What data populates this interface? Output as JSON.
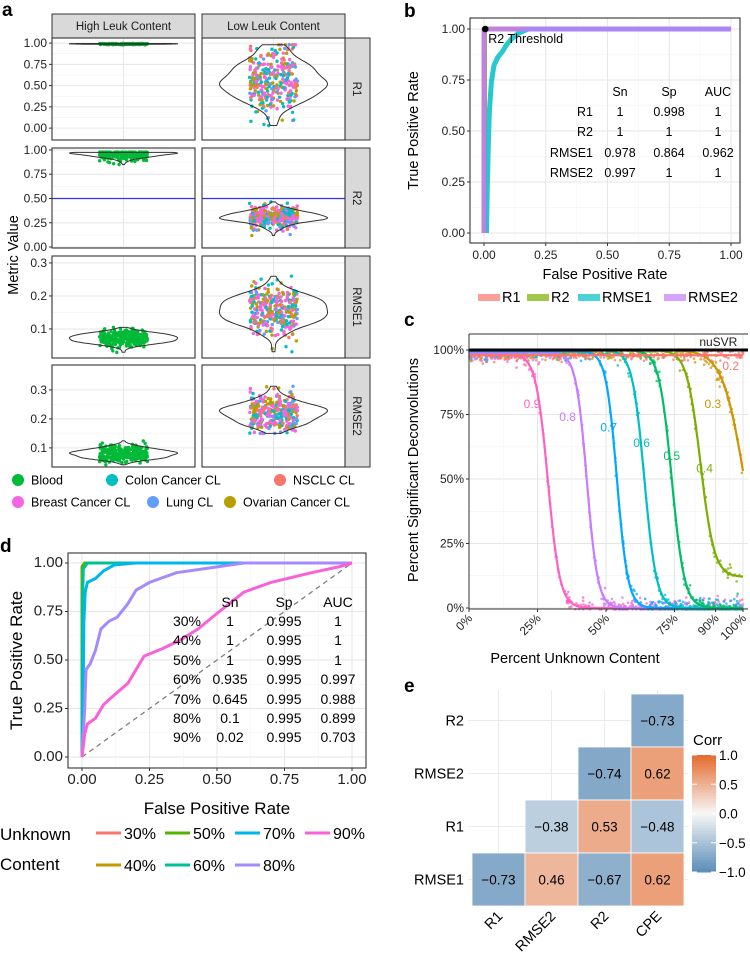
{
  "panel_labels": [
    "a",
    "b",
    "c",
    "d",
    "e"
  ],
  "chart_data": [
    {
      "id": "a",
      "type": "violin+scatter",
      "ylabel": "Metric Value",
      "columns": [
        "High Leuk Content",
        "Low Leuk Content"
      ],
      "rows": [
        {
          "name": "R1",
          "ylim": [
            -0.14,
            1.06
          ],
          "ticks": [
            0,
            0.25,
            0.5,
            0.75,
            1
          ],
          "tick_labels": [
            "0.00",
            "0.25",
            "0.50",
            "0.75",
            "1.00"
          ],
          "high": {
            "mean": 0.99,
            "sd": 0.005,
            "n": 200
          },
          "low": {
            "mean": 0.55,
            "sd": 0.2,
            "n": 320,
            "min": -0.08,
            "max": 0.98
          }
        },
        {
          "name": "R2",
          "ylim": [
            -0.01,
            1.02
          ],
          "ticks": [
            0,
            0.25,
            0.5,
            0.75,
            1
          ],
          "tick_labels": [
            "0.00",
            "0.25",
            "0.50",
            "0.75",
            "1.00"
          ],
          "threshold": 0.5,
          "high": {
            "mean": 0.955,
            "sd": 0.035,
            "n": 250
          },
          "low": {
            "mean": 0.31,
            "sd": 0.06,
            "n": 320,
            "min": 0.02,
            "max": 0.5
          }
        },
        {
          "name": "RMSE1",
          "ylim": [
            0.012,
            0.321
          ],
          "ticks": [
            0.1,
            0.2,
            0.3
          ],
          "tick_labels": [
            "0.1",
            "0.2",
            "0.3"
          ],
          "high": {
            "mean": 0.07,
            "sd": 0.014,
            "n": 250
          },
          "low": {
            "mean": 0.16,
            "sd": 0.04,
            "n": 320,
            "min": 0.03,
            "max": 0.32
          }
        },
        {
          "name": "RMSE2",
          "ylim": [
            0.034,
            0.386
          ],
          "ticks": [
            0.1,
            0.2,
            0.3
          ],
          "tick_labels": [
            "0.1",
            "0.2",
            "0.3"
          ],
          "high": {
            "mean": 0.08,
            "sd": 0.015,
            "n": 250
          },
          "low": {
            "mean": 0.22,
            "sd": 0.035,
            "n": 320,
            "min": 0.15,
            "max": 0.37
          }
        }
      ],
      "legend": [
        {
          "label": "Blood",
          "color": "#00BA38"
        },
        {
          "label": "Colon Cancer CL",
          "color": "#00BFC4"
        },
        {
          "label": "NSCLC CL",
          "color": "#F8766D"
        },
        {
          "label": "Breast Cancer CL",
          "color": "#F564E3"
        },
        {
          "label": "Lung CL",
          "color": "#619CFF"
        },
        {
          "label": "Ovarian Cancer CL",
          "color": "#B79F00"
        }
      ],
      "threshold_color": "#3333ff"
    },
    {
      "id": "b",
      "type": "line",
      "xlabel": "False Positive Rate",
      "ylabel": "True Positive Rate",
      "xlim": [
        0,
        1
      ],
      "ylim": [
        0,
        1
      ],
      "ticks": [
        0,
        0.25,
        0.5,
        0.75,
        1
      ],
      "tick_labels": [
        "0.00",
        "0.25",
        "0.50",
        "0.75",
        "1.00"
      ],
      "series": [
        {
          "name": "R1",
          "color": "#F8766D",
          "points": [
            [
              0,
              0
            ],
            [
              0,
              1
            ],
            [
              1,
              1
            ]
          ]
        },
        {
          "name": "R2",
          "color": "#7CAE00",
          "points": [
            [
              0.002,
              0
            ],
            [
              0.002,
              1
            ],
            [
              1,
              1
            ]
          ]
        },
        {
          "name": "RMSE1",
          "color": "#00BFC4",
          "points": [
            [
              0.01,
              0
            ],
            [
              0.013,
              0.2
            ],
            [
              0.018,
              0.45
            ],
            [
              0.022,
              0.6
            ],
            [
              0.03,
              0.74
            ],
            [
              0.04,
              0.82
            ],
            [
              0.055,
              0.86
            ],
            [
              0.075,
              0.89
            ],
            [
              0.09,
              0.92
            ],
            [
              0.11,
              0.95
            ],
            [
              0.14,
              0.98
            ],
            [
              0.18,
              1
            ],
            [
              1,
              1
            ]
          ]
        },
        {
          "name": "RMSE2",
          "color": "#C77CFF",
          "points": [
            [
              0,
              0
            ],
            [
              0,
              1
            ],
            [
              1,
              1
            ]
          ]
        }
      ],
      "annotation": {
        "label": "R2 Threshold",
        "x": 0.005,
        "y": 1
      },
      "table": {
        "header": [
          "",
          "Sn",
          "Sp",
          "AUC"
        ],
        "rows": [
          [
            "R1",
            "1",
            "0.998",
            "1"
          ],
          [
            "R2",
            "1",
            "1",
            "1"
          ],
          [
            "RMSE1",
            "0.978",
            "0.864",
            "0.962"
          ],
          [
            "RMSE2",
            "0.997",
            "1",
            "1"
          ]
        ]
      }
    },
    {
      "id": "c",
      "type": "scatter+line",
      "xlabel": "Percent Unknown Content",
      "ylabel": "Percent Significant Deconvolutions",
      "xlim": [
        0,
        100
      ],
      "ylim": [
        0,
        100
      ],
      "xticks": [
        0,
        25,
        50,
        75,
        90,
        100
      ],
      "xtick_labels": [
        "0%",
        "25%",
        "50%",
        "75%",
        "90%",
        "100%"
      ],
      "yticks": [
        0,
        25,
        50,
        75,
        100
      ],
      "ytick_labels": [
        "0%",
        "25%",
        "50%",
        "75%",
        "100%"
      ],
      "reference": {
        "label": "nuSVR",
        "value": 100,
        "label_at": [
          91,
          101.5
        ]
      },
      "series": [
        {
          "name": "0.9",
          "color": "#FF61C3",
          "mid": 28.8,
          "scale": 2.2,
          "low": 0,
          "high": 98.5,
          "label_at": [
            23,
            79
          ]
        },
        {
          "name": "0.8",
          "color": "#C77CFF",
          "mid": 43,
          "scale": 2.0,
          "low": 0,
          "high": 99,
          "label_at": [
            36,
            74
          ]
        },
        {
          "name": "0.7",
          "color": "#00A9FF",
          "mid": 54,
          "scale": 2.0,
          "low": 0,
          "high": 99.5,
          "label_at": [
            51,
            70
          ]
        },
        {
          "name": "0.6",
          "color": "#00BFC4",
          "mid": 64,
          "scale": 2.2,
          "low": 0,
          "high": 100,
          "label_at": [
            63,
            64
          ]
        },
        {
          "name": "0.5",
          "color": "#00BE67",
          "mid": 74,
          "scale": 2.3,
          "low": 0,
          "high": 100,
          "label_at": [
            74,
            59
          ]
        },
        {
          "name": "0.4",
          "color": "#7CAE00",
          "mid": 84.5,
          "scale": 2.5,
          "low": 12,
          "high": 100,
          "label_at": [
            86,
            54
          ]
        },
        {
          "name": "0.3",
          "color": "#CD9600",
          "mid": 100.5,
          "scale": 4,
          "low": 0,
          "high": 100,
          "label_at": [
            89,
            79
          ]
        },
        {
          "name": "0.2",
          "color": "#F8766D",
          "mid": 300,
          "scale": 4,
          "low": 0,
          "high": 98,
          "label_at": [
            95.5,
            93.8
          ]
        }
      ]
    },
    {
      "id": "d",
      "type": "line",
      "xlabel": "False Positive Rate",
      "ylabel": "True Positive Rate",
      "xlim": [
        0,
        1
      ],
      "ylim": [
        0,
        1
      ],
      "ticks": [
        0,
        0.25,
        0.5,
        0.75,
        1
      ],
      "tick_labels": [
        "0.00",
        "0.25",
        "0.50",
        "0.75",
        "1.00"
      ],
      "legend_title": [
        "Unknown",
        "Content"
      ],
      "series": [
        {
          "name": "30%",
          "color": "#F8766D",
          "points": [
            [
              0,
              0
            ],
            [
              0,
              0.98
            ],
            [
              0.01,
              1
            ],
            [
              1,
              1
            ]
          ]
        },
        {
          "name": "40%",
          "color": "#C49A00",
          "points": [
            [
              0,
              0
            ],
            [
              0,
              0.98
            ],
            [
              0.01,
              1
            ],
            [
              1,
              1
            ]
          ]
        },
        {
          "name": "50%",
          "color": "#53B400",
          "points": [
            [
              0,
              0
            ],
            [
              0,
              0.98
            ],
            [
              0.01,
              1
            ],
            [
              1,
              1
            ]
          ]
        },
        {
          "name": "60%",
          "color": "#00C094",
          "points": [
            [
              0,
              0
            ],
            [
              0.002,
              0.8
            ],
            [
              0.005,
              0.97
            ],
            [
              0.02,
              1
            ],
            [
              1,
              1
            ]
          ]
        },
        {
          "name": "70%",
          "color": "#00B6EB",
          "points": [
            [
              0,
              0
            ],
            [
              0.004,
              0.3
            ],
            [
              0.007,
              0.7
            ],
            [
              0.012,
              0.85
            ],
            [
              0.02,
              0.9
            ],
            [
              0.05,
              0.92
            ],
            [
              0.08,
              0.96
            ],
            [
              0.12,
              0.99
            ],
            [
              0.2,
              1
            ],
            [
              1,
              1
            ]
          ]
        },
        {
          "name": "80%",
          "color": "#A58AFF",
          "points": [
            [
              0,
              0
            ],
            [
              0.01,
              0.25
            ],
            [
              0.015,
              0.45
            ],
            [
              0.03,
              0.48
            ],
            [
              0.05,
              0.55
            ],
            [
              0.07,
              0.66
            ],
            [
              0.1,
              0.7
            ],
            [
              0.13,
              0.72
            ],
            [
              0.17,
              0.79
            ],
            [
              0.2,
              0.86
            ],
            [
              0.25,
              0.9
            ],
            [
              0.35,
              0.95
            ],
            [
              0.5,
              0.98
            ],
            [
              0.6,
              1
            ],
            [
              1,
              1
            ]
          ]
        },
        {
          "name": "90%",
          "color": "#FB61D7",
          "points": [
            [
              0,
              0
            ],
            [
              0.01,
              0.12
            ],
            [
              0.02,
              0.17
            ],
            [
              0.05,
              0.2
            ],
            [
              0.08,
              0.27
            ],
            [
              0.12,
              0.32
            ],
            [
              0.17,
              0.38
            ],
            [
              0.2,
              0.45
            ],
            [
              0.23,
              0.52
            ],
            [
              0.3,
              0.56
            ],
            [
              0.36,
              0.6
            ],
            [
              0.43,
              0.66
            ],
            [
              0.5,
              0.74
            ],
            [
              0.6,
              0.85
            ],
            [
              0.7,
              0.9
            ],
            [
              0.85,
              0.95
            ],
            [
              0.95,
              0.98
            ],
            [
              1,
              1
            ]
          ]
        }
      ],
      "table": {
        "header": [
          "",
          "Sn",
          "Sp",
          "AUC"
        ],
        "rows": [
          [
            "30%",
            "1",
            "0.995",
            "1"
          ],
          [
            "40%",
            "1",
            "0.995",
            "1"
          ],
          [
            "50%",
            "1",
            "0.995",
            "1"
          ],
          [
            "60%",
            "0.935",
            "0.995",
            "0.997"
          ],
          [
            "70%",
            "0.645",
            "0.995",
            "0.988"
          ],
          [
            "80%",
            "0.1",
            "0.995",
            "0.899"
          ],
          [
            "90%",
            "0.02",
            "0.995",
            "0.703"
          ]
        ]
      }
    },
    {
      "id": "e",
      "type": "heatmap",
      "x_categories": [
        "R1",
        "RMSE2",
        "R2",
        "CPE"
      ],
      "y_categories": [
        "R2",
        "RMSE2",
        "R1",
        "RMSE1"
      ],
      "cells": [
        {
          "x": "CPE",
          "y": "R2",
          "value": -0.73,
          "label": "−0.73"
        },
        {
          "x": "R2",
          "y": "RMSE2",
          "value": -0.74,
          "label": "−0.74"
        },
        {
          "x": "CPE",
          "y": "RMSE2",
          "value": 0.62,
          "label": "0.62"
        },
        {
          "x": "RMSE2",
          "y": "R1",
          "value": -0.38,
          "label": "−0.38"
        },
        {
          "x": "R2",
          "y": "R1",
          "value": 0.53,
          "label": "0.53"
        },
        {
          "x": "CPE",
          "y": "R1",
          "value": -0.48,
          "label": "−0.48"
        },
        {
          "x": "R1",
          "y": "RMSE1",
          "value": -0.73,
          "label": "−0.73"
        },
        {
          "x": "RMSE2",
          "y": "RMSE1",
          "value": 0.46,
          "label": "0.46"
        },
        {
          "x": "R2",
          "y": "RMSE1",
          "value": -0.67,
          "label": "−0.67"
        },
        {
          "x": "CPE",
          "y": "RMSE1",
          "value": 0.62,
          "label": "0.62"
        }
      ],
      "legend_title": "Corr",
      "legend_ticks": [
        1,
        0.5,
        0,
        -0.5,
        -1
      ],
      "legend_tick_labels": [
        "1.0",
        "0.5",
        "0.0",
        "−0.5",
        "−1.0"
      ],
      "color_low": "#5b8db8",
      "color_mid": "#f7f7f7",
      "color_high": "#e36a2e"
    }
  ]
}
